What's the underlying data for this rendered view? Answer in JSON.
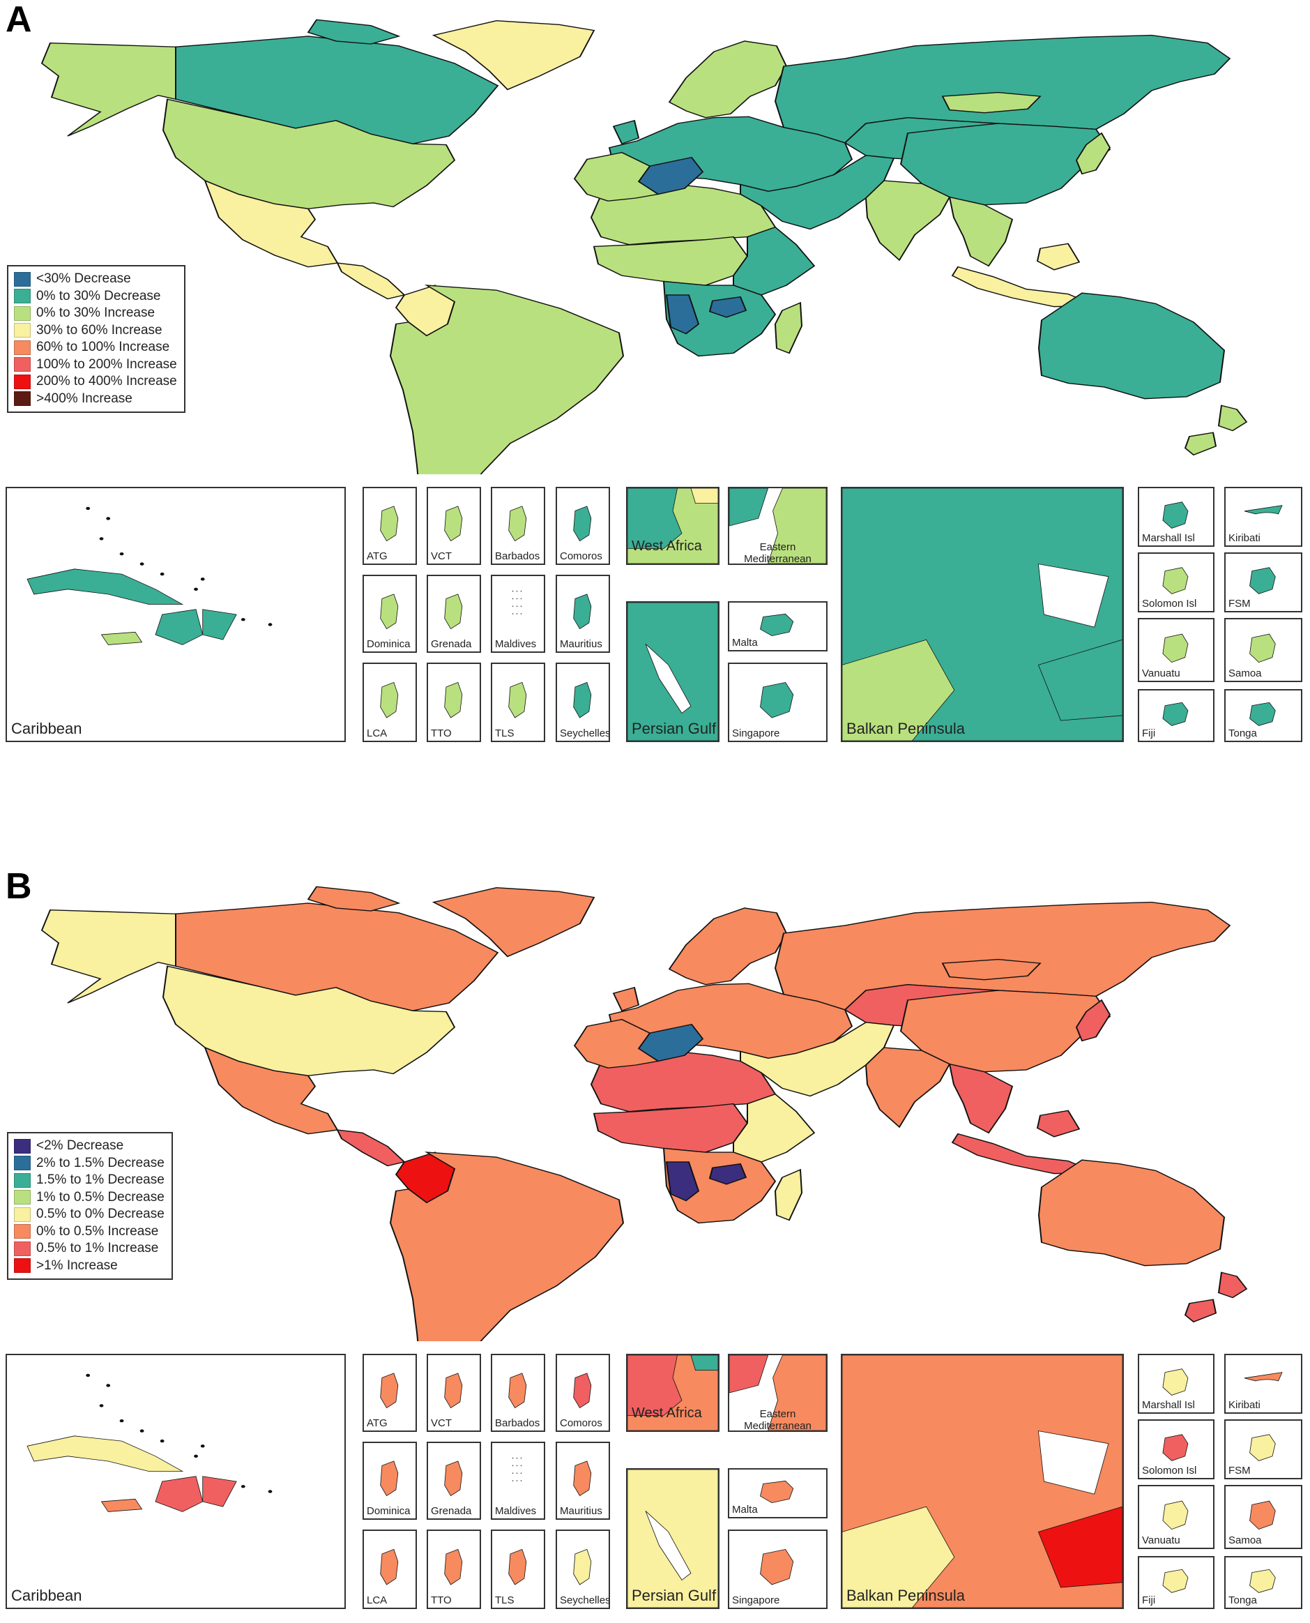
{
  "figure": {
    "panels": [
      {
        "letter": "A",
        "legend": [
          {
            "label": "<30% Decrease",
            "color": "#2b6e9a"
          },
          {
            "label": "0% to 30% Decrease",
            "color": "#3aaf95"
          },
          {
            "label": "0% to 30% Increase",
            "color": "#b9e07e"
          },
          {
            "label": "30% to 60% Increase",
            "color": "#f9f0a0"
          },
          {
            "label": "60% to 100% Increase",
            "color": "#f78a5f"
          },
          {
            "label": "100% to 200% Increase",
            "color": "#f06060"
          },
          {
            "label": "200% to 400% Increase",
            "color": "#ee1111"
          },
          {
            "label": ">400% Increase",
            "color": "#5c1b12"
          }
        ],
        "colors": {
          "north_america": "#b9e07e",
          "canada": "#3aaf95",
          "alaska": "#b9e07e",
          "greenland": "#f9f0a0",
          "mexico": "#f9f0a0",
          "central_america": "#f9f0a0",
          "south_america": "#b9e07e",
          "colombia": "#f9f0a0",
          "europe": "#3aaf95",
          "scandinavia": "#b9e07e",
          "russia": "#3aaf95",
          "central_asia": "#3aaf95",
          "mongolia": "#b9e07e",
          "china": "#3aaf95",
          "middle_east": "#3aaf95",
          "india": "#b9e07e",
          "southeast_asia": "#b9e07e",
          "japan": "#b9e07e",
          "indonesia": "#f9f0a0",
          "north_africa": "#b9e07e",
          "niger": "#2b6e9a",
          "west_africa": "#b9e07e",
          "central_africa": "#b9e07e",
          "east_africa": "#3aaf95",
          "southern_africa": "#3aaf95",
          "namibia": "#2b6e9a",
          "zambia": "#2b6e9a",
          "madagascar": "#b9e07e",
          "australia": "#3aaf95",
          "new_zealand": "#b9e07e"
        },
        "insets": [
          {
            "label": "Caribbean",
            "cuba": "#3aaf95",
            "haiti": "#3aaf95",
            "dominican": "#3aaf95",
            "jamaica": "#b9e07e"
          },
          {
            "label": "ATG",
            "color": "#b9e07e"
          },
          {
            "label": "VCT",
            "color": "#b9e07e"
          },
          {
            "label": "Barbados",
            "color": "#b9e07e"
          },
          {
            "label": "Comoros",
            "color": "#3aaf95"
          },
          {
            "label": "Dominica",
            "color": "#b9e07e"
          },
          {
            "label": "Grenada",
            "color": "#b9e07e"
          },
          {
            "label": "Maldives",
            "color": "#ffffff"
          },
          {
            "label": "Mauritius",
            "color": "#3aaf95"
          },
          {
            "label": "LCA",
            "color": "#b9e07e"
          },
          {
            "label": "TTO",
            "color": "#b9e07e"
          },
          {
            "label": "TLS",
            "color": "#b9e07e"
          },
          {
            "label": "Seychelles",
            "color": "#3aaf95"
          },
          {
            "label": "West Africa",
            "c1": "#3aaf95",
            "c2": "#b9e07e",
            "c3": "#f9f0a0"
          },
          {
            "label": "Eastern Mediterranean",
            "c1": "#3aaf95",
            "c2": "#b9e07e"
          },
          {
            "label": "Persian Gulf",
            "c1": "#3aaf95",
            "c2": "#3aaf95"
          },
          {
            "label": "Malta",
            "color": "#3aaf95"
          },
          {
            "label": "Singapore",
            "color": "#3aaf95"
          },
          {
            "label": "Balkan Peninsula",
            "c1": "#3aaf95",
            "c2": "#b9e07e",
            "c3": "#3aaf95"
          },
          {
            "label": "Marshall Isl",
            "color": "#3aaf95"
          },
          {
            "label": "Kiribati",
            "color": "#3aaf95"
          },
          {
            "label": "Solomon Isl",
            "color": "#b9e07e"
          },
          {
            "label": "FSM",
            "color": "#3aaf95"
          },
          {
            "label": "Vanuatu",
            "color": "#b9e07e"
          },
          {
            "label": "Samoa",
            "color": "#b9e07e"
          },
          {
            "label": "Fiji",
            "color": "#3aaf95"
          },
          {
            "label": "Tonga",
            "color": "#3aaf95"
          }
        ]
      },
      {
        "letter": "B",
        "legend": [
          {
            "label": "<2% Decrease",
            "color": "#3b2e7e"
          },
          {
            "label": "2% to 1.5% Decrease",
            "color": "#2b6e9a"
          },
          {
            "label": "1.5% to 1% Decrease",
            "color": "#3aaf95"
          },
          {
            "label": "1% to 0.5% Decrease",
            "color": "#b9e07e"
          },
          {
            "label": "0.5% to 0% Decrease",
            "color": "#f9f0a0"
          },
          {
            "label": "0% to 0.5% Increase",
            "color": "#f78a5f"
          },
          {
            "label": "0.5% to 1% Increase",
            "color": "#f06060"
          },
          {
            "label": ">1% Increase",
            "color": "#ee1111"
          }
        ],
        "colors": {
          "north_america": "#f9f0a0",
          "canada": "#f78a5f",
          "alaska": "#f9f0a0",
          "greenland": "#f78a5f",
          "mexico": "#f78a5f",
          "central_america": "#f06060",
          "south_america": "#f78a5f",
          "colombia": "#ee1111",
          "europe": "#f78a5f",
          "scandinavia": "#f78a5f",
          "russia": "#f78a5f",
          "central_asia": "#f06060",
          "mongolia": "#f78a5f",
          "china": "#f78a5f",
          "middle_east": "#f9f0a0",
          "india": "#f78a5f",
          "southeast_asia": "#f06060",
          "japan": "#f06060",
          "indonesia": "#f06060",
          "north_africa": "#f06060",
          "niger": "#2b6e9a",
          "west_africa": "#f78a5f",
          "central_africa": "#f06060",
          "east_africa": "#f9f0a0",
          "southern_africa": "#f78a5f",
          "namibia": "#3b2e7e",
          "zambia": "#3b2e7e",
          "madagascar": "#f9f0a0",
          "australia": "#f78a5f",
          "new_zealand": "#f06060"
        },
        "insets": [
          {
            "label": "Caribbean",
            "cuba": "#f9f0a0",
            "haiti": "#f06060",
            "dominican": "#f06060",
            "jamaica": "#f78a5f"
          },
          {
            "label": "ATG",
            "color": "#f78a5f"
          },
          {
            "label": "VCT",
            "color": "#f78a5f"
          },
          {
            "label": "Barbados",
            "color": "#f78a5f"
          },
          {
            "label": "Comoros",
            "color": "#f06060"
          },
          {
            "label": "Dominica",
            "color": "#f78a5f"
          },
          {
            "label": "Grenada",
            "color": "#f78a5f"
          },
          {
            "label": "Maldives",
            "color": "#ffffff"
          },
          {
            "label": "Mauritius",
            "color": "#f78a5f"
          },
          {
            "label": "LCA",
            "color": "#f78a5f"
          },
          {
            "label": "TTO",
            "color": "#f78a5f"
          },
          {
            "label": "TLS",
            "color": "#f78a5f"
          },
          {
            "label": "Seychelles",
            "color": "#f9f0a0"
          },
          {
            "label": "West Africa",
            "c1": "#f06060",
            "c2": "#f78a5f",
            "c3": "#3aaf95"
          },
          {
            "label": "Eastern Mediterranean",
            "c1": "#f06060",
            "c2": "#f78a5f"
          },
          {
            "label": "Persian Gulf",
            "c1": "#f9f0a0",
            "c2": "#f9f0a0"
          },
          {
            "label": "Malta",
            "color": "#f78a5f"
          },
          {
            "label": "Singapore",
            "color": "#f78a5f"
          },
          {
            "label": "Balkan Peninsula",
            "c1": "#f78a5f",
            "c2": "#f9f0a0",
            "c3": "#ee1111"
          },
          {
            "label": "Marshall Isl",
            "color": "#f9f0a0"
          },
          {
            "label": "Kiribati",
            "color": "#f78a5f"
          },
          {
            "label": "Solomon Isl",
            "color": "#f06060"
          },
          {
            "label": "FSM",
            "color": "#f9f0a0"
          },
          {
            "label": "Vanuatu",
            "color": "#f9f0a0"
          },
          {
            "label": "Samoa",
            "color": "#f78a5f"
          },
          {
            "label": "Fiji",
            "color": "#f9f0a0"
          },
          {
            "label": "Tonga",
            "color": "#f9f0a0"
          }
        ]
      }
    ]
  }
}
